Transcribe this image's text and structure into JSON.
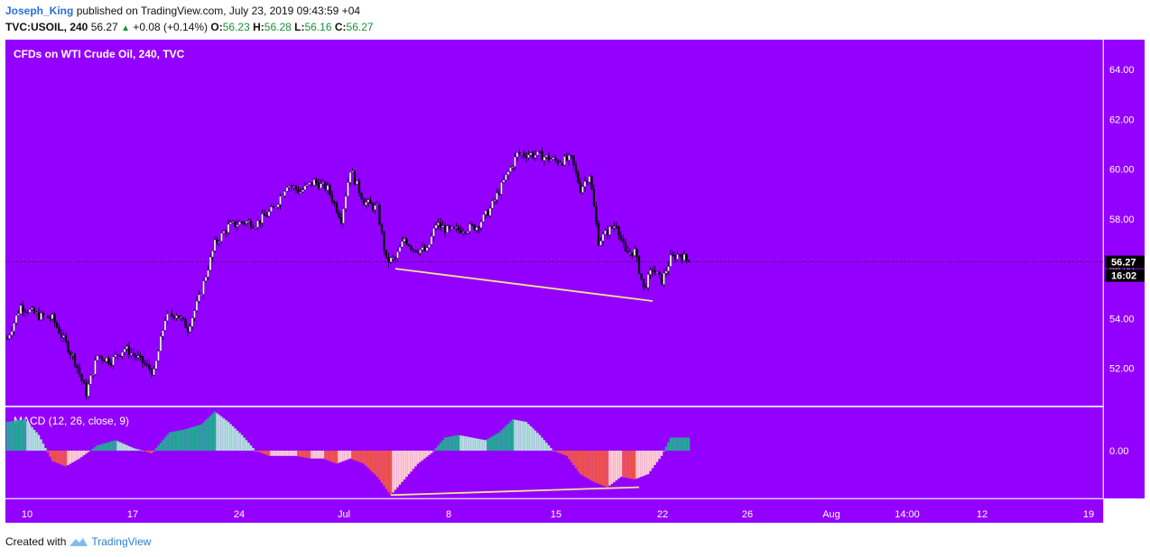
{
  "header": {
    "author": "Joseph_King",
    "published": "published on TradingView.com, July 23, 2019 09:43:59 +04"
  },
  "quote": {
    "symbol": "TVC:USOIL, 240",
    "last": "56.27",
    "change": "+0.08 (+0.14%)",
    "o_label": "O:",
    "o": "56.23",
    "h_label": "H:",
    "h": "56.28",
    "l_label": "L:",
    "l": "56.16",
    "c_label": "C:",
    "c": "56.27"
  },
  "footer": {
    "prefix": "Created with",
    "brand": "TradingView"
  },
  "colors": {
    "background": "#9400ff",
    "candle_up": "#ffffff",
    "candle_down": "#000000",
    "macd_up_strong": "#26a69a",
    "macd_up_weak": "#b2dfdb",
    "macd_down_strong": "#ef5350",
    "macd_down_weak": "#ffcdd2",
    "trendline": "#f0e68c",
    "price_label_bg": "#000000"
  },
  "chart_data": {
    "type": "candlestick",
    "title": "CFDs on WTI Crude Oil, 240, TVC",
    "price_axis": {
      "ticks": [
        "64.00",
        "62.00",
        "60.00",
        "58.00",
        "56.00",
        "54.00",
        "52.00"
      ],
      "ylim": [
        50.5,
        65.2
      ]
    },
    "time_axis": {
      "ticks": [
        "10",
        "17",
        "24",
        "Jul",
        "8",
        "15",
        "22",
        "26",
        "Aug",
        "14:00",
        "12",
        "19"
      ]
    },
    "last_price_label": "56.27",
    "countdown_label": "16:02",
    "last_price": 56.27,
    "macd": {
      "title": "MACD (12, 26, close, 9)",
      "ticks": [
        "0.00"
      ]
    },
    "anchors": [
      {
        "t": 0,
        "p": 53.2
      },
      {
        "t": 6,
        "p": 54.5
      },
      {
        "t": 14,
        "p": 54.1
      },
      {
        "t": 20,
        "p": 54.0
      },
      {
        "t": 30,
        "p": 52.3
      },
      {
        "t": 35,
        "p": 51.0
      },
      {
        "t": 40,
        "p": 52.5
      },
      {
        "t": 46,
        "p": 52.3
      },
      {
        "t": 52,
        "p": 52.8
      },
      {
        "t": 58,
        "p": 52.4
      },
      {
        "t": 65,
        "p": 51.8
      },
      {
        "t": 70,
        "p": 54.0
      },
      {
        "t": 75,
        "p": 54.2
      },
      {
        "t": 80,
        "p": 53.6
      },
      {
        "t": 85,
        "p": 54.8
      },
      {
        "t": 92,
        "p": 57.0
      },
      {
        "t": 98,
        "p": 57.7
      },
      {
        "t": 105,
        "p": 57.9
      },
      {
        "t": 110,
        "p": 57.8
      },
      {
        "t": 118,
        "p": 58.4
      },
      {
        "t": 124,
        "p": 59.4
      },
      {
        "t": 130,
        "p": 59.1
      },
      {
        "t": 136,
        "p": 59.5
      },
      {
        "t": 142,
        "p": 59.2
      },
      {
        "t": 148,
        "p": 58.0
      },
      {
        "t": 152,
        "p": 60.0
      },
      {
        "t": 158,
        "p": 58.7
      },
      {
        "t": 164,
        "p": 58.4
      },
      {
        "t": 168,
        "p": 56.3
      },
      {
        "t": 172,
        "p": 56.4
      },
      {
        "t": 176,
        "p": 57.2
      },
      {
        "t": 180,
        "p": 56.8
      },
      {
        "t": 186,
        "p": 56.7
      },
      {
        "t": 190,
        "p": 57.8
      },
      {
        "t": 196,
        "p": 57.5
      },
      {
        "t": 202,
        "p": 57.6
      },
      {
        "t": 208,
        "p": 57.7
      },
      {
        "t": 214,
        "p": 58.4
      },
      {
        "t": 220,
        "p": 59.5
      },
      {
        "t": 226,
        "p": 60.6
      },
      {
        "t": 232,
        "p": 60.6
      },
      {
        "t": 238,
        "p": 60.5
      },
      {
        "t": 244,
        "p": 60.3
      },
      {
        "t": 250,
        "p": 60.4
      },
      {
        "t": 254,
        "p": 59.2
      },
      {
        "t": 258,
        "p": 59.8
      },
      {
        "t": 262,
        "p": 57.1
      },
      {
        "t": 266,
        "p": 57.5
      },
      {
        "t": 270,
        "p": 57.8
      },
      {
        "t": 274,
        "p": 56.6
      },
      {
        "t": 278,
        "p": 56.7
      },
      {
        "t": 282,
        "p": 55.2
      },
      {
        "t": 286,
        "p": 56.0
      },
      {
        "t": 290,
        "p": 55.5
      },
      {
        "t": 294,
        "p": 56.4
      },
      {
        "t": 298,
        "p": 56.6
      },
      {
        "t": 302,
        "p": 56.27
      }
    ],
    "macd_hist": [
      {
        "t": 0,
        "v": 0.55
      },
      {
        "t": 8,
        "v": 0.6
      },
      {
        "t": 14,
        "v": 0.3
      },
      {
        "t": 20,
        "v": -0.2
      },
      {
        "t": 26,
        "v": -0.3
      },
      {
        "t": 32,
        "v": -0.15
      },
      {
        "t": 40,
        "v": 0.1
      },
      {
        "t": 48,
        "v": 0.2
      },
      {
        "t": 56,
        "v": 0.05
      },
      {
        "t": 64,
        "v": -0.05
      },
      {
        "t": 72,
        "v": 0.35
      },
      {
        "t": 78,
        "v": 0.4
      },
      {
        "t": 86,
        "v": 0.5
      },
      {
        "t": 92,
        "v": 0.75
      },
      {
        "t": 98,
        "v": 0.55
      },
      {
        "t": 104,
        "v": 0.3
      },
      {
        "t": 110,
        "v": 0.0
      },
      {
        "t": 116,
        "v": -0.1
      },
      {
        "t": 122,
        "v": -0.1
      },
      {
        "t": 128,
        "v": -0.1
      },
      {
        "t": 134,
        "v": -0.15
      },
      {
        "t": 140,
        "v": -0.15
      },
      {
        "t": 146,
        "v": -0.25
      },
      {
        "t": 152,
        "v": -0.15
      },
      {
        "t": 158,
        "v": -0.25
      },
      {
        "t": 164,
        "v": -0.5
      },
      {
        "t": 170,
        "v": -0.85
      },
      {
        "t": 176,
        "v": -0.55
      },
      {
        "t": 182,
        "v": -0.25
      },
      {
        "t": 188,
        "v": -0.05
      },
      {
        "t": 194,
        "v": 0.25
      },
      {
        "t": 200,
        "v": 0.3
      },
      {
        "t": 206,
        "v": 0.25
      },
      {
        "t": 212,
        "v": 0.2
      },
      {
        "t": 218,
        "v": 0.35
      },
      {
        "t": 224,
        "v": 0.6
      },
      {
        "t": 230,
        "v": 0.55
      },
      {
        "t": 236,
        "v": 0.3
      },
      {
        "t": 242,
        "v": 0.0
      },
      {
        "t": 248,
        "v": -0.1
      },
      {
        "t": 254,
        "v": -0.45
      },
      {
        "t": 260,
        "v": -0.6
      },
      {
        "t": 266,
        "v": -0.7
      },
      {
        "t": 272,
        "v": -0.5
      },
      {
        "t": 278,
        "v": -0.55
      },
      {
        "t": 284,
        "v": -0.45
      },
      {
        "t": 290,
        "v": -0.1
      },
      {
        "t": 294,
        "v": 0.25
      },
      {
        "t": 302,
        "v": 0.25
      }
    ],
    "trendlines": [
      {
        "pane": "price",
        "from": {
          "t": 172,
          "p": 56.0
        },
        "to": {
          "t": 286,
          "p": 54.7
        }
      },
      {
        "pane": "macd",
        "from": {
          "t": 170,
          "v": -0.85
        },
        "to": {
          "t": 280,
          "v": -0.7
        }
      }
    ]
  }
}
